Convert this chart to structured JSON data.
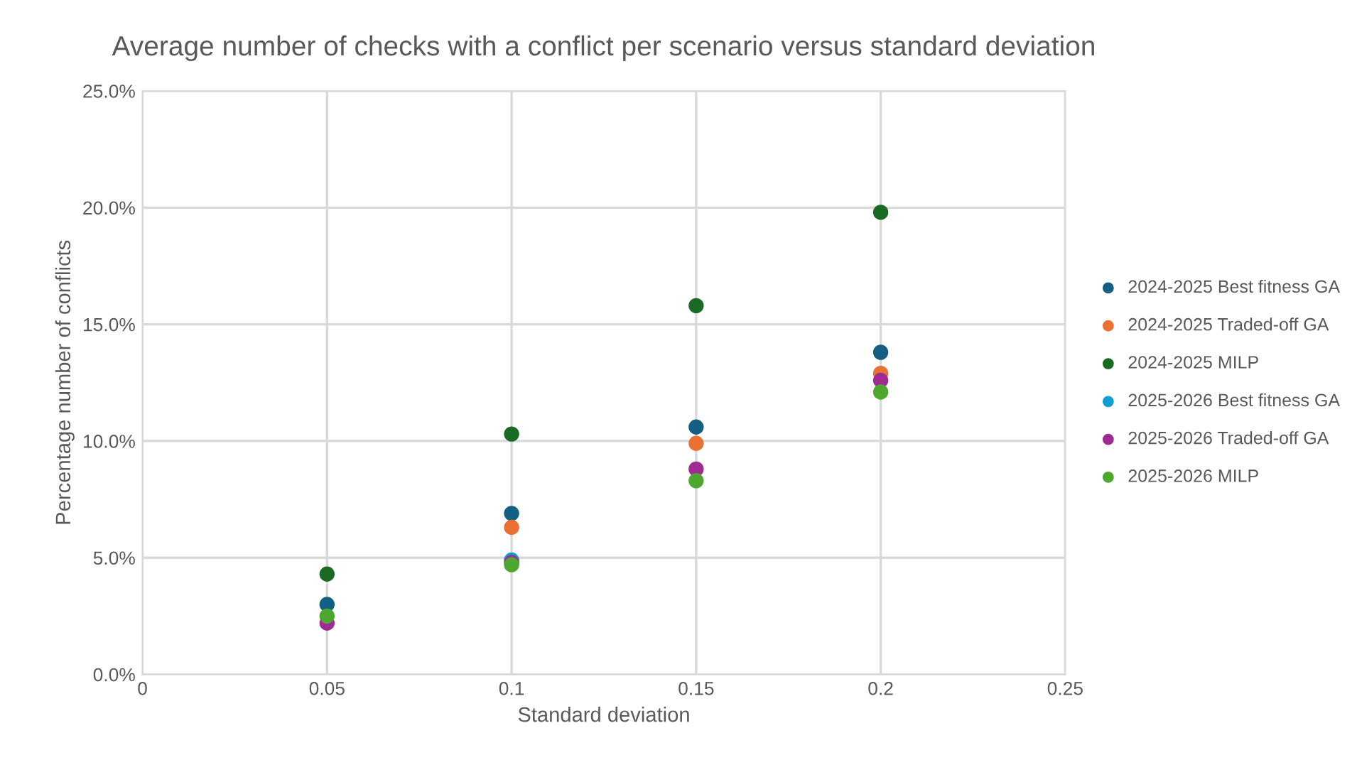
{
  "chart_data": {
    "type": "scatter",
    "title": "Average number of checks with a conflict per scenario versus standard deviation",
    "xlabel": "Standard deviation",
    "ylabel": "Percentage number of conflicts",
    "x": [
      0.05,
      0.1,
      0.15,
      0.2
    ],
    "series": [
      {
        "name": "2024-2025 Best fitness GA",
        "color": "#156082",
        "values": [
          3.0,
          6.9,
          10.6,
          13.8
        ]
      },
      {
        "name": "2024-2025 Traded-off GA",
        "color": "#e97132",
        "values": [
          null,
          6.3,
          9.9,
          12.9
        ]
      },
      {
        "name": "2024-2025 MILP",
        "color": "#196b24",
        "values": [
          4.3,
          10.3,
          15.8,
          19.8
        ]
      },
      {
        "name": "2025-2026 Best fitness GA",
        "color": "#0f9ed5",
        "values": [
          null,
          4.9,
          null,
          null
        ]
      },
      {
        "name": "2025-2026 Traded-off GA",
        "color": "#a02b93",
        "values": [
          2.2,
          4.8,
          8.8,
          12.6
        ]
      },
      {
        "name": "2025-2026 MILP",
        "color": "#4ea72e",
        "values": [
          2.5,
          4.7,
          8.3,
          12.1
        ]
      }
    ],
    "xlim": [
      0,
      0.25
    ],
    "xticks": [
      0,
      0.05,
      0.1,
      0.15,
      0.2,
      0.25
    ],
    "ylim": [
      0,
      25
    ],
    "yticks": [
      {
        "value": 0,
        "label": "0.0%"
      },
      {
        "value": 5,
        "label": "5.0%"
      },
      {
        "value": 10,
        "label": "10.0%"
      },
      {
        "value": 15,
        "label": "15.0%"
      },
      {
        "value": 20,
        "label": "20.0%"
      },
      {
        "value": 25,
        "label": "25.0%"
      }
    ],
    "grid": true,
    "legend": "right",
    "marker": "circle"
  }
}
